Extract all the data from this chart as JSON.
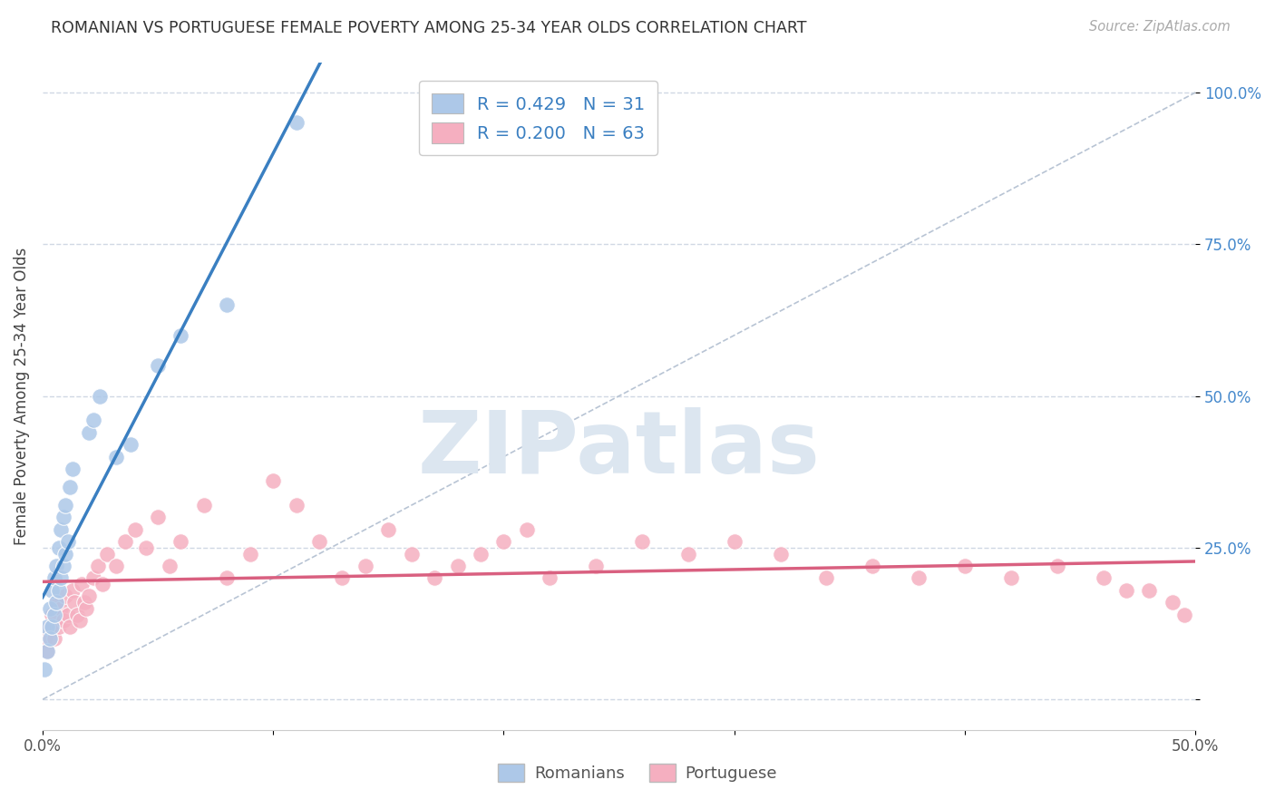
{
  "title": "ROMANIAN VS PORTUGUESE FEMALE POVERTY AMONG 25-34 YEAR OLDS CORRELATION CHART",
  "source": "Source: ZipAtlas.com",
  "ylabel": "Female Poverty Among 25-34 Year Olds",
  "xlim": [
    0.0,
    0.5
  ],
  "ylim": [
    -0.05,
    1.05
  ],
  "romanian_R": 0.429,
  "romanian_N": 31,
  "portuguese_R": 0.2,
  "portuguese_N": 63,
  "romanian_color": "#adc8e8",
  "portuguese_color": "#f5afc0",
  "romanian_line_color": "#3a7fc1",
  "portuguese_line_color": "#d96080",
  "diagonal_color": "#b8c4d4",
  "watermark_color": "#dce6f0",
  "background_color": "#ffffff",
  "grid_color": "#d0d8e4",
  "romanian_x": [
    0.001,
    0.002,
    0.002,
    0.003,
    0.003,
    0.004,
    0.004,
    0.005,
    0.005,
    0.006,
    0.006,
    0.007,
    0.007,
    0.008,
    0.008,
    0.009,
    0.009,
    0.01,
    0.01,
    0.011,
    0.012,
    0.013,
    0.02,
    0.022,
    0.025,
    0.032,
    0.038,
    0.05,
    0.06,
    0.08,
    0.11
  ],
  "romanian_y": [
    0.05,
    0.08,
    0.12,
    0.1,
    0.15,
    0.12,
    0.18,
    0.14,
    0.2,
    0.16,
    0.22,
    0.18,
    0.25,
    0.2,
    0.28,
    0.22,
    0.3,
    0.24,
    0.32,
    0.26,
    0.35,
    0.38,
    0.44,
    0.46,
    0.5,
    0.4,
    0.42,
    0.55,
    0.6,
    0.65,
    0.95
  ],
  "portuguese_x": [
    0.001,
    0.002,
    0.003,
    0.004,
    0.005,
    0.006,
    0.007,
    0.008,
    0.009,
    0.01,
    0.011,
    0.012,
    0.013,
    0.014,
    0.015,
    0.016,
    0.017,
    0.018,
    0.019,
    0.02,
    0.022,
    0.024,
    0.026,
    0.028,
    0.032,
    0.036,
    0.04,
    0.045,
    0.05,
    0.055,
    0.06,
    0.07,
    0.08,
    0.09,
    0.1,
    0.11,
    0.12,
    0.13,
    0.14,
    0.15,
    0.16,
    0.17,
    0.18,
    0.19,
    0.2,
    0.21,
    0.22,
    0.24,
    0.26,
    0.28,
    0.3,
    0.32,
    0.34,
    0.36,
    0.38,
    0.4,
    0.42,
    0.44,
    0.46,
    0.47,
    0.48,
    0.49,
    0.495
  ],
  "portuguese_y": [
    0.1,
    0.08,
    0.12,
    0.14,
    0.1,
    0.16,
    0.12,
    0.15,
    0.13,
    0.17,
    0.14,
    0.12,
    0.18,
    0.16,
    0.14,
    0.13,
    0.19,
    0.16,
    0.15,
    0.17,
    0.2,
    0.22,
    0.19,
    0.24,
    0.22,
    0.26,
    0.28,
    0.25,
    0.3,
    0.22,
    0.26,
    0.32,
    0.2,
    0.24,
    0.36,
    0.32,
    0.26,
    0.2,
    0.22,
    0.28,
    0.24,
    0.2,
    0.22,
    0.24,
    0.26,
    0.28,
    0.2,
    0.22,
    0.26,
    0.24,
    0.26,
    0.24,
    0.2,
    0.22,
    0.2,
    0.22,
    0.2,
    0.22,
    0.2,
    0.18,
    0.18,
    0.16,
    0.14
  ],
  "legend_R_color": "#3a7fc1",
  "legend_N_color": "#3a7fc1",
  "legend_label_color": "#333333"
}
